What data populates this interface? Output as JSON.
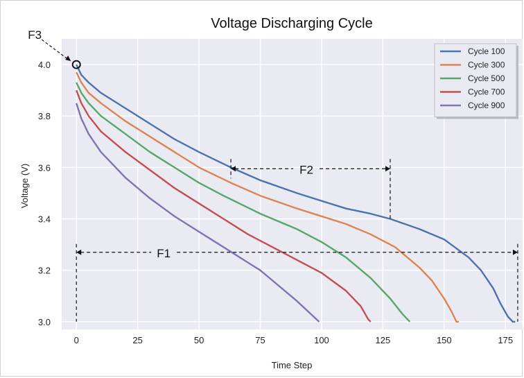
{
  "chart_data": {
    "type": "line",
    "title": "Voltage Discharging Cycle",
    "xlabel": "Time Step",
    "ylabel": "Voltage (V)",
    "xlim": [
      -6,
      182
    ],
    "ylim": [
      2.97,
      4.1
    ],
    "xticks": [
      0,
      25,
      50,
      75,
      100,
      125,
      150,
      175
    ],
    "yticks": [
      3.0,
      3.2,
      3.4,
      3.6,
      3.8,
      4.0
    ],
    "grid": true,
    "legend_position": "top-right",
    "series": [
      {
        "name": "Cycle 100",
        "color": "#4c72b0",
        "x": [
          0,
          2,
          5,
          10,
          20,
          30,
          40,
          50,
          63,
          75,
          90,
          100,
          110,
          120,
          128,
          140,
          150,
          160,
          165,
          170,
          173,
          176,
          178,
          179
        ],
        "y": [
          4.0,
          3.96,
          3.93,
          3.89,
          3.83,
          3.77,
          3.71,
          3.66,
          3.6,
          3.55,
          3.5,
          3.47,
          3.44,
          3.42,
          3.4,
          3.36,
          3.32,
          3.25,
          3.2,
          3.13,
          3.07,
          3.02,
          3.0,
          3.0
        ]
      },
      {
        "name": "Cycle 300",
        "color": "#dd8452",
        "x": [
          0,
          2,
          5,
          10,
          20,
          30,
          40,
          50,
          63,
          75,
          90,
          100,
          110,
          120,
          130,
          140,
          145,
          150,
          153,
          155,
          156
        ],
        "y": [
          3.97,
          3.93,
          3.89,
          3.85,
          3.78,
          3.72,
          3.66,
          3.6,
          3.54,
          3.49,
          3.44,
          3.41,
          3.38,
          3.34,
          3.29,
          3.21,
          3.16,
          3.09,
          3.04,
          3.0,
          3.0
        ]
      },
      {
        "name": "Cycle 500",
        "color": "#55a868",
        "x": [
          0,
          2,
          5,
          10,
          20,
          30,
          40,
          50,
          60,
          75,
          90,
          100,
          110,
          120,
          128,
          133,
          136
        ],
        "y": [
          3.93,
          3.89,
          3.85,
          3.8,
          3.73,
          3.66,
          3.6,
          3.54,
          3.49,
          3.42,
          3.36,
          3.31,
          3.25,
          3.17,
          3.09,
          3.03,
          3.0
        ]
      },
      {
        "name": "Cycle 700",
        "color": "#c44e52",
        "x": [
          0,
          2,
          5,
          10,
          20,
          30,
          40,
          50,
          60,
          70,
          80,
          90,
          100,
          110,
          116,
          119,
          120
        ],
        "y": [
          3.9,
          3.85,
          3.8,
          3.74,
          3.66,
          3.59,
          3.52,
          3.46,
          3.4,
          3.34,
          3.29,
          3.24,
          3.19,
          3.12,
          3.06,
          3.01,
          3.0
        ]
      },
      {
        "name": "Cycle 900",
        "color": "#8172b3",
        "x": [
          0,
          2,
          5,
          10,
          20,
          30,
          40,
          50,
          60,
          70,
          75,
          80,
          90,
          99
        ],
        "y": [
          3.85,
          3.79,
          3.73,
          3.66,
          3.56,
          3.48,
          3.41,
          3.35,
          3.29,
          3.23,
          3.2,
          3.16,
          3.08,
          3.0
        ]
      }
    ],
    "annotations": {
      "F1": {
        "label": "F1",
        "x_from": 0,
        "x_to": 180,
        "y": 3.27
      },
      "F2": {
        "label": "F2",
        "x_from": 63,
        "x_to": 128,
        "y": 3.595
      },
      "F3": {
        "label": "F3",
        "x": 0,
        "y": 4.0
      }
    }
  }
}
